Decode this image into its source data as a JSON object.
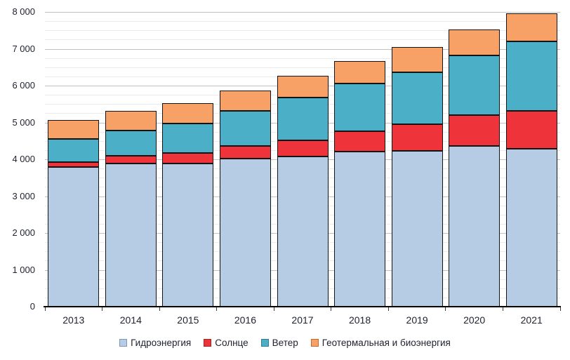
{
  "chart_data": {
    "type": "bar",
    "stacked": true,
    "title": "",
    "xlabel": "",
    "ylabel": "",
    "grid": true,
    "legend_position": "bottom",
    "categories": [
      "2013",
      "2014",
      "2015",
      "2016",
      "2017",
      "2018",
      "2019",
      "2020",
      "2021"
    ],
    "series": [
      {
        "key": "hydro",
        "name": "Гидроэнергия",
        "color": "#B6CBE4",
        "swatch_border": "#7D96B8",
        "values": [
          3790,
          3890,
          3890,
          4025,
          4080,
          4210,
          4230,
          4355,
          4280
        ]
      },
      {
        "key": "solar",
        "name": "Солнце",
        "color": "#EE333B",
        "swatch_border": "#A2242A",
        "values": [
          140,
          205,
          275,
          330,
          430,
          560,
          715,
          850,
          1030
        ]
      },
      {
        "key": "wind",
        "name": "Ветер",
        "color": "#4BAFC7",
        "swatch_border": "#2F7D91",
        "values": [
          620,
          690,
          815,
          960,
          1160,
          1280,
          1420,
          1620,
          1890
        ]
      },
      {
        "key": "geo-bio",
        "name": "Геотермальная и биоэнергия",
        "color": "#F7A166",
        "swatch_border": "#C06A33",
        "values": [
          510,
          530,
          550,
          560,
          590,
          620,
          685,
          705,
          760
        ]
      }
    ],
    "totals": [
      5060,
      5315,
      5530,
      5875,
      6260,
      6670,
      7050,
      7530,
      7960
    ],
    "ylim": [
      0,
      8000
    ],
    "y_major_step": 1000,
    "y_minor_step": 250,
    "y_tick_labels": [
      "0",
      "1 000",
      "2 000",
      "3 000",
      "4 000",
      "5 000",
      "6 000",
      "7 000",
      "8 000"
    ]
  },
  "colors": {
    "background": "#FFFFFF",
    "bar_border": "#141414",
    "major_grid": "#C1C1C1",
    "minor_grid": "#EBEBEB",
    "axis_line": "#000000",
    "text": "#212330"
  }
}
